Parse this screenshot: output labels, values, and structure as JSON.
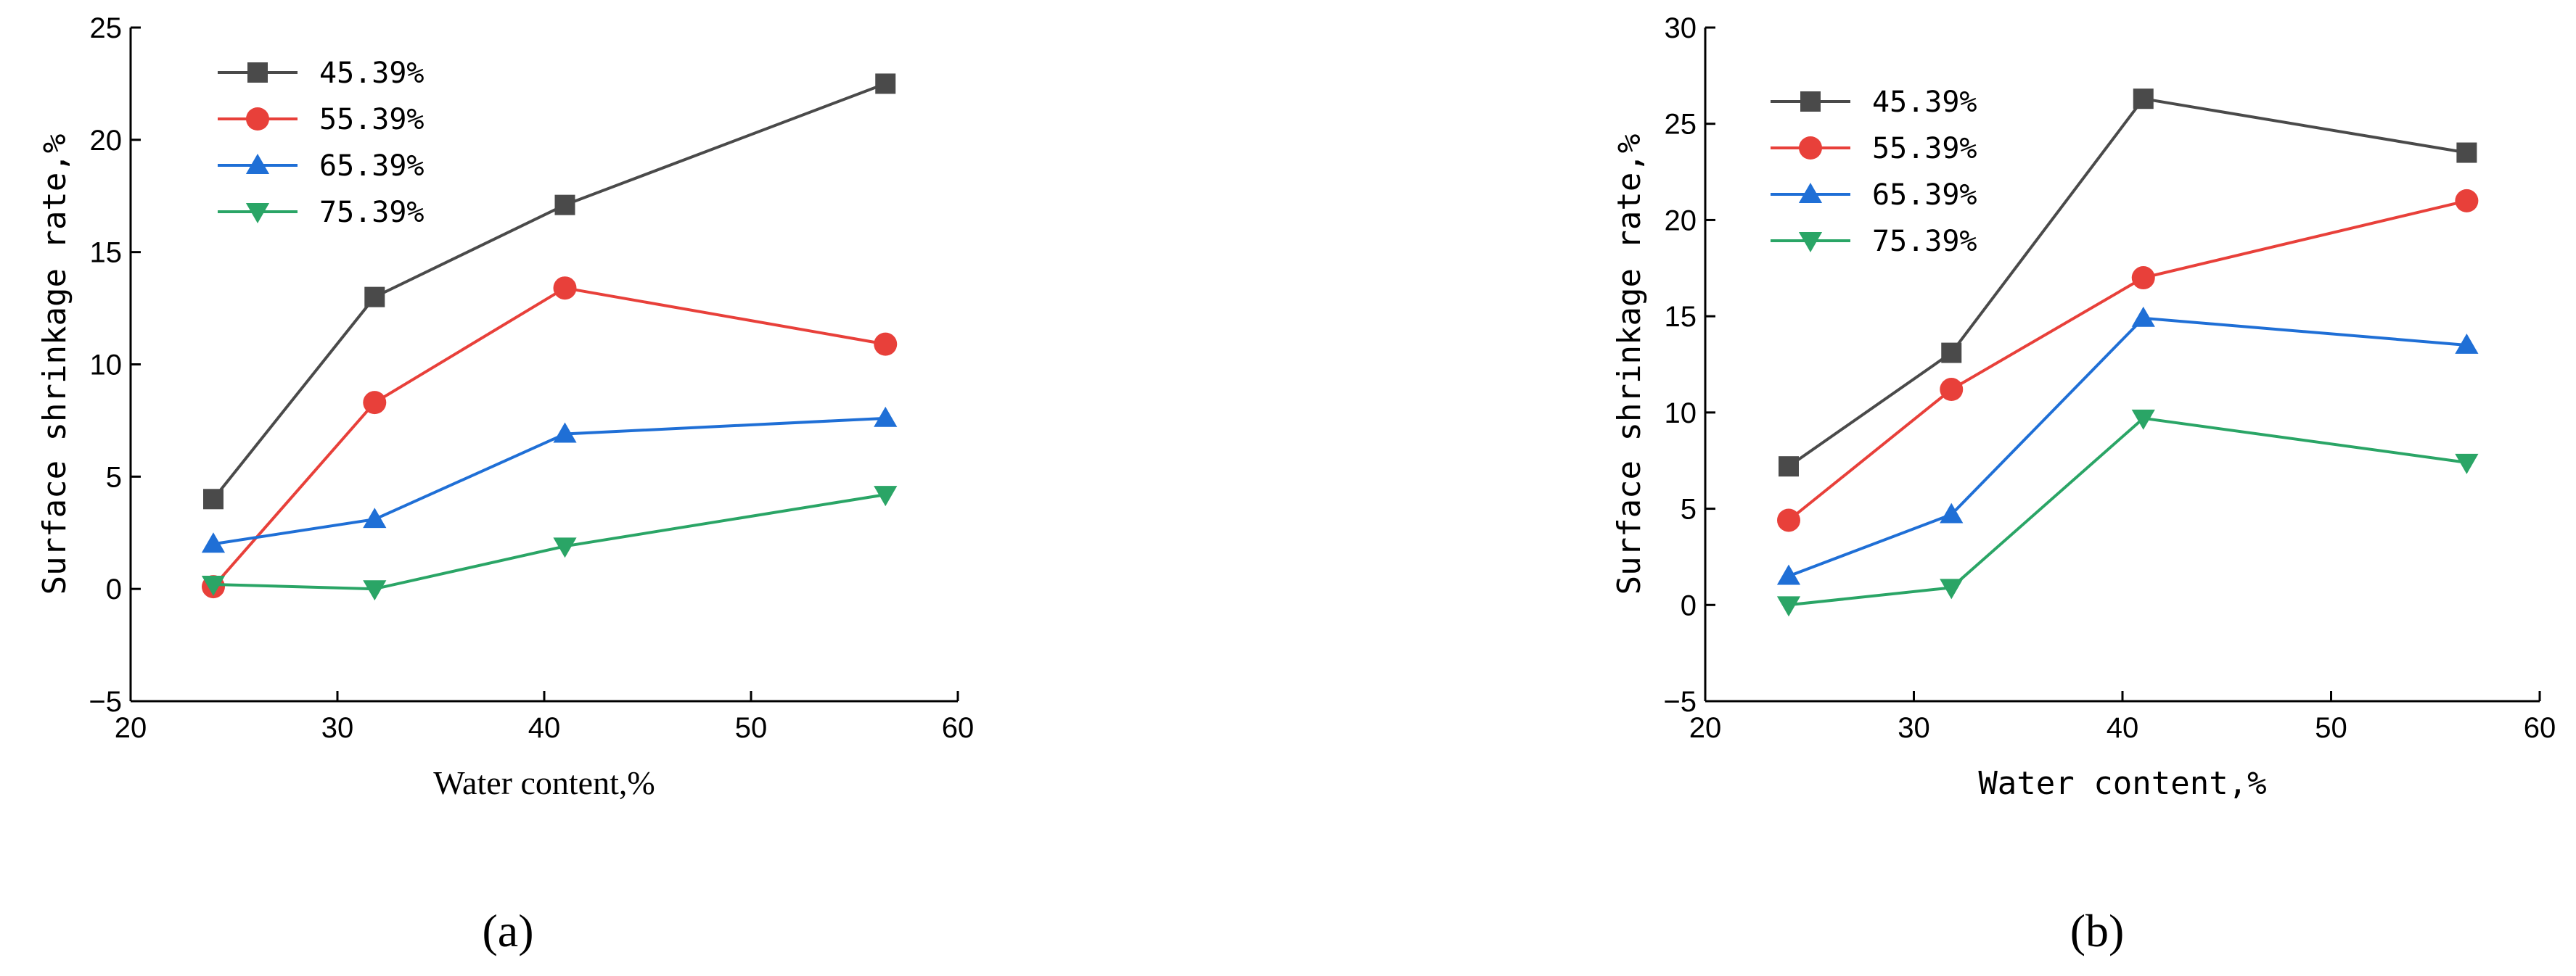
{
  "chart_data": [
    {
      "type": "line",
      "panel_label": "(a)",
      "xlabel": "Water content,%",
      "ylabel": "Surface shrinkage rate,%",
      "xlim": [
        20,
        60
      ],
      "ylim": [
        -5,
        25
      ],
      "xticks": [
        20,
        30,
        40,
        50,
        60
      ],
      "yticks": [
        -5,
        0,
        5,
        10,
        15,
        20,
        25
      ],
      "grid": false,
      "legend_position": "top-left",
      "x": [
        24,
        31.8,
        41,
        56.5
      ],
      "series": [
        {
          "name": "45.39%",
          "values": [
            4.0,
            13.0,
            17.1,
            22.5
          ],
          "color": "#4a4a4a",
          "marker": "square"
        },
        {
          "name": "55.39%",
          "values": [
            0.1,
            8.3,
            13.4,
            10.9
          ],
          "color": "#e8403a",
          "marker": "circle"
        },
        {
          "name": "65.39%",
          "values": [
            2.0,
            3.1,
            6.9,
            7.6
          ],
          "color": "#1f6fd6",
          "marker": "triangle-up"
        },
        {
          "name": "75.39%",
          "values": [
            0.2,
            0.0,
            1.9,
            4.2
          ],
          "color": "#2aa566",
          "marker": "triangle-down"
        }
      ]
    },
    {
      "type": "line",
      "panel_label": "(b)",
      "xlabel": "Water content,%",
      "ylabel": "Surface shrinkage rate,%",
      "xlim": [
        20,
        60
      ],
      "ylim": [
        -5,
        30
      ],
      "xticks": [
        20,
        30,
        40,
        50,
        60
      ],
      "yticks": [
        -5,
        0,
        5,
        10,
        15,
        20,
        25,
        30
      ],
      "grid": false,
      "legend_position": "top-left",
      "x": [
        24,
        31.8,
        41,
        56.5
      ],
      "series": [
        {
          "name": "45.39%",
          "values": [
            7.2,
            13.1,
            26.3,
            23.5
          ],
          "color": "#4a4a4a",
          "marker": "square"
        },
        {
          "name": "55.39%",
          "values": [
            4.4,
            11.2,
            17.0,
            21.0
          ],
          "color": "#e8403a",
          "marker": "circle"
        },
        {
          "name": "65.39%",
          "values": [
            1.5,
            4.7,
            14.9,
            13.5
          ],
          "color": "#1f6fd6",
          "marker": "triangle-up"
        },
        {
          "name": "75.39%",
          "values": [
            0.0,
            0.9,
            9.7,
            7.4
          ],
          "color": "#2aa566",
          "marker": "triangle-down"
        }
      ]
    }
  ]
}
